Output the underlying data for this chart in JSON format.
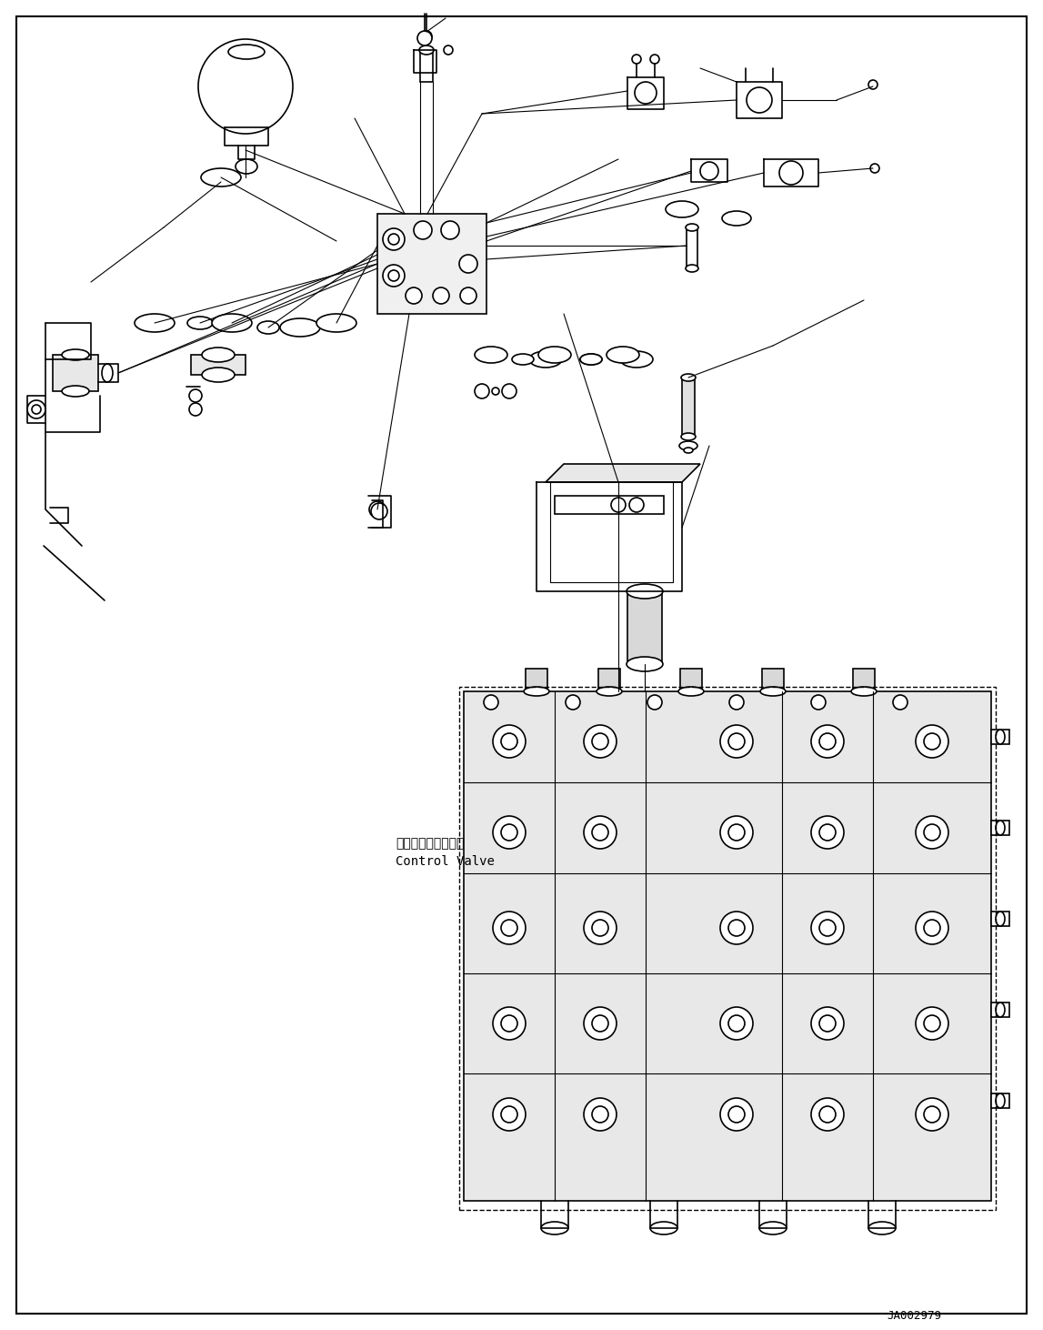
{
  "background_color": "#ffffff",
  "line_color": "#000000",
  "fig_width": 11.47,
  "fig_height": 14.62,
  "dpi": 100,
  "label_control_valve_jp": "コントロールバルブ",
  "label_control_valve_en": "Control Valve",
  "label_part_number": "JA002979",
  "text_color": "#000000"
}
